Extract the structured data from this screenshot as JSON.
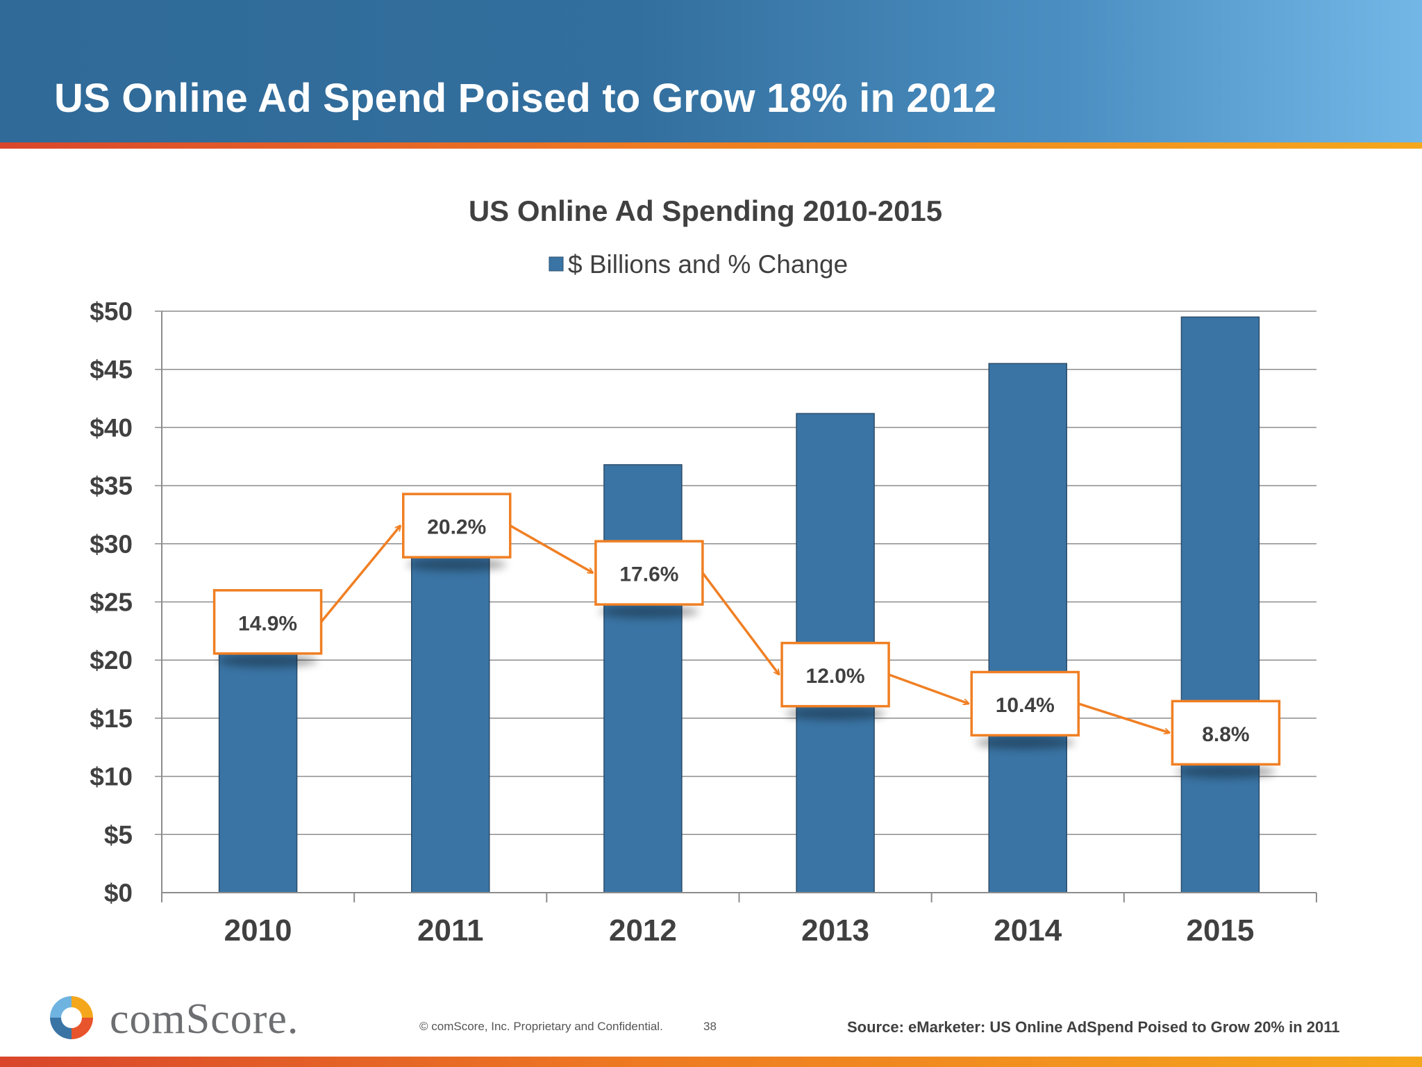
{
  "slide": {
    "title": "US Online Ad Spend Poised to Grow 18% in 2012"
  },
  "chart_data": {
    "type": "bar",
    "title": "US Online Ad Spending 2010-2015",
    "legend": "$ Billions and % Change",
    "legend_position": "top",
    "categories": [
      "2010",
      "2011",
      "2012",
      "2013",
      "2014",
      "2015"
    ],
    "series": [
      {
        "name": "$ Billions and % Change",
        "values": [
          26.0,
          31.3,
          36.8,
          41.2,
          45.5,
          49.5
        ]
      }
    ],
    "pct_change": [
      "14.9%",
      "20.2%",
      "17.6%",
      "12.0%",
      "10.4%",
      "8.8%"
    ],
    "pct_change_values": [
      14.9,
      20.2,
      17.6,
      12.0,
      10.4,
      8.8
    ],
    "ylim": [
      0,
      50
    ],
    "y_ticks": [
      {
        "value": 0,
        "label": "$0"
      },
      {
        "value": 5,
        "label": "$5"
      },
      {
        "value": 10,
        "label": "$10"
      },
      {
        "value": 15,
        "label": "$15"
      },
      {
        "value": 20,
        "label": "$20"
      },
      {
        "value": 25,
        "label": "$25"
      },
      {
        "value": 30,
        "label": "$30"
      },
      {
        "value": 35,
        "label": "$35"
      },
      {
        "value": 40,
        "label": "$40"
      },
      {
        "value": 45,
        "label": "$45"
      },
      {
        "value": 50,
        "label": "$50"
      }
    ],
    "xlabel": "",
    "ylabel": "",
    "grid": true,
    "colors": {
      "bar": "#3a74a4",
      "annotation": "#f07f23",
      "grid": "#8c8c8c"
    }
  },
  "footer": {
    "logo": "comScore.",
    "copyright": "© comScore, Inc.  Proprietary and Confidential.",
    "page_number": "38",
    "source": "Source: eMarketer: US Online AdSpend Poised to Grow 20% in 2011"
  }
}
